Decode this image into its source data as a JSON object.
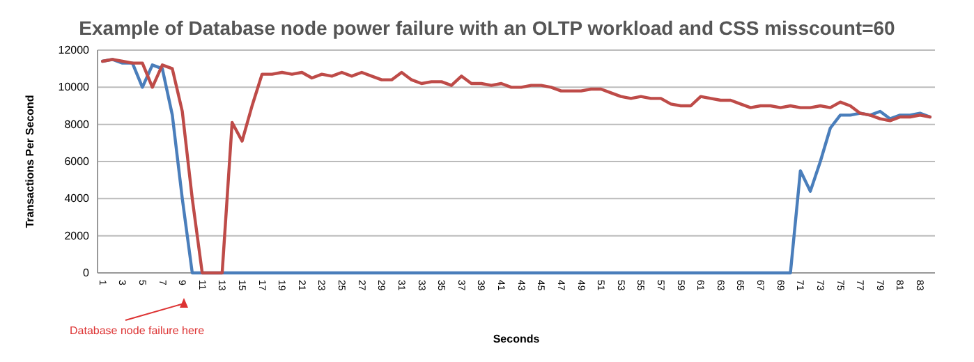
{
  "chart_data": {
    "type": "line",
    "title": "Example of Database node power failure with an OLTP workload and CSS misscount=60",
    "xlabel": "Seconds",
    "ylabel": "Transactions Per Second",
    "categories": [
      "1",
      null,
      "3",
      null,
      "5",
      null,
      "7",
      null,
      "9",
      null,
      "11",
      null,
      "13",
      null,
      "15",
      null,
      "17",
      null,
      "19",
      null,
      "21",
      null,
      "23",
      null,
      "25",
      null,
      "27",
      null,
      "29",
      null,
      "31",
      null,
      "33",
      null,
      "35",
      null,
      "37",
      null,
      "39",
      null,
      "41",
      null,
      "43",
      null,
      "45",
      null,
      "47",
      null,
      "49",
      null,
      "51",
      null,
      "53",
      null,
      "55",
      null,
      "57",
      null,
      "59",
      null,
      "61",
      null,
      "63",
      null,
      "65",
      null,
      "67",
      null,
      "69",
      null,
      "71",
      null,
      "73",
      null,
      "75",
      null,
      "77",
      null,
      "79",
      null,
      "81",
      null,
      "83",
      null
    ],
    "series": [
      {
        "color": "#4a7ebb",
        "values": [
          11400,
          11500,
          11300,
          11300,
          10000,
          11200,
          11000,
          8500,
          4000,
          0,
          0,
          0,
          0,
          0,
          0,
          0,
          0,
          0,
          0,
          0,
          0,
          0,
          0,
          0,
          0,
          0,
          0,
          0,
          0,
          0,
          0,
          0,
          0,
          0,
          0,
          0,
          0,
          0,
          0,
          0,
          0,
          0,
          0,
          0,
          0,
          0,
          0,
          0,
          0,
          0,
          0,
          0,
          0,
          0,
          0,
          0,
          0,
          0,
          0,
          0,
          0,
          0,
          0,
          0,
          0,
          0,
          0,
          0,
          0,
          0,
          5500,
          4400,
          6000,
          7800,
          8500,
          8500,
          8600,
          8500,
          8700,
          8300,
          8500,
          8500,
          8600,
          8400
        ]
      },
      {
        "color": "#be4b48",
        "values": [
          11400,
          11500,
          11400,
          11300,
          11300,
          10000,
          11200,
          11000,
          8700,
          4000,
          0,
          0,
          0,
          8100,
          7100,
          9000,
          10700,
          10700,
          10800,
          10700,
          10800,
          10500,
          10700,
          10600,
          10800,
          10600,
          10800,
          10600,
          10400,
          10400,
          10800,
          10400,
          10200,
          10300,
          10300,
          10100,
          10600,
          10200,
          10200,
          10100,
          10200,
          10000,
          10000,
          10100,
          10100,
          10000,
          9800,
          9800,
          9800,
          9900,
          9900,
          9700,
          9500,
          9400,
          9500,
          9400,
          9400,
          9100,
          9000,
          9000,
          9500,
          9400,
          9300,
          9300,
          9100,
          8900,
          9000,
          9000,
          8900,
          9000,
          8900,
          8900,
          9000,
          8900,
          9200,
          9000,
          8600,
          8500,
          8300,
          8200,
          8400,
          8400,
          8500,
          8400
        ]
      }
    ],
    "ylim": [
      0,
      12000
    ],
    "yticks": [
      0,
      2000,
      4000,
      6000,
      8000,
      10000,
      12000
    ],
    "grid": "y",
    "marker": "none",
    "line_style": "solid",
    "annotations": [
      "Database node failure here"
    ]
  }
}
